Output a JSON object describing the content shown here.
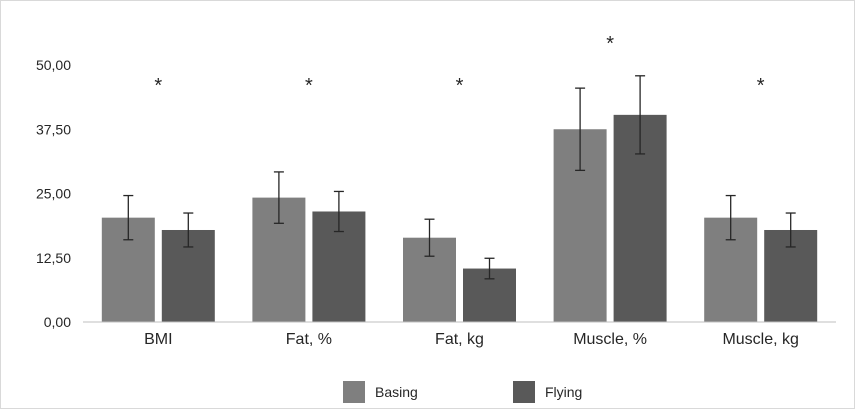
{
  "chart_data": {
    "type": "bar",
    "categories": [
      "BMI",
      "Fat, %",
      "Fat, kg",
      "Muscle, %",
      "Muscle, kg"
    ],
    "series": [
      {
        "name": "Basing",
        "color": "#7f7f7f",
        "values": [
          20.3,
          24.2,
          16.4,
          37.5,
          20.3
        ],
        "error": [
          4.3,
          5.0,
          3.6,
          8.0,
          4.3
        ]
      },
      {
        "name": "Flying",
        "color": "#595959",
        "values": [
          17.9,
          21.5,
          10.4,
          40.3,
          17.9
        ],
        "error": [
          3.3,
          3.9,
          2.0,
          7.6,
          3.3
        ]
      }
    ],
    "significance": [
      "*",
      "*",
      "*",
      "*",
      "*"
    ],
    "yticks": [
      "0,00",
      "12,50",
      "25,00",
      "37,50",
      "50,00"
    ],
    "ylim": [
      0,
      62.5
    ],
    "title": "",
    "xlabel": "",
    "ylabel": "",
    "legend_position": "bottom",
    "grid": false
  }
}
